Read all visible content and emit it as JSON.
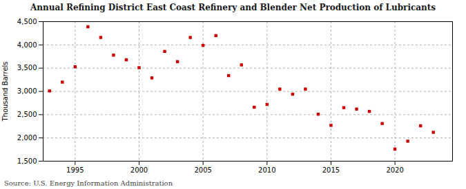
{
  "chart_data": {
    "type": "scatter",
    "title": "Annual Refining District East Coast Refinery and Blender Net Production of Lubricants",
    "ylabel": "Thousand Barrels",
    "source": "Source: U.S. Energy Information Administration",
    "x": [
      1993,
      1994,
      1995,
      1996,
      1997,
      1998,
      1999,
      2000,
      2001,
      2002,
      2003,
      2004,
      2005,
      2006,
      2007,
      2008,
      2009,
      2010,
      2011,
      2012,
      2013,
      2014,
      2015,
      2016,
      2017,
      2018,
      2019,
      2020,
      2021,
      2022,
      2023
    ],
    "values": [
      3010,
      3200,
      3530,
      4390,
      4160,
      3780,
      3680,
      3510,
      3290,
      3860,
      3640,
      4160,
      3990,
      4200,
      3340,
      3570,
      2660,
      2720,
      3050,
      2940,
      3050,
      2510,
      2270,
      2650,
      2620,
      2570,
      2310,
      1760,
      1930,
      2260,
      2120
    ],
    "color": "#cc0000",
    "marker": "square",
    "xlim": [
      1992.5,
      2024.5
    ],
    "xticks": [
      1995,
      2000,
      2005,
      2010,
      2015,
      2020
    ],
    "ylim": [
      1500,
      4500
    ],
    "yticks": [
      {
        "value": 1500,
        "label": "1,500"
      },
      {
        "value": 2000,
        "label": "2,000"
      },
      {
        "value": 2500,
        "label": "2,500"
      },
      {
        "value": 3000,
        "label": "3,000"
      },
      {
        "value": 3500,
        "label": "3,500"
      },
      {
        "value": 4000,
        "label": "4,000"
      },
      {
        "value": 4500,
        "label": "4,500"
      }
    ],
    "grid": true
  }
}
